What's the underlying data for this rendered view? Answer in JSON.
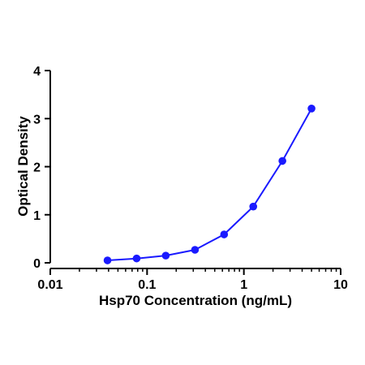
{
  "chart_data": {
    "type": "line",
    "xlabel": "Hsp70 Concentration (ng/mL)",
    "ylabel": "Optical Density",
    "x_scale": "log",
    "xlim": [
      0.01,
      10
    ],
    "ylim": [
      0,
      4
    ],
    "x_ticks": [
      "0.01",
      "0.1",
      "1",
      "10"
    ],
    "y_ticks": [
      "0",
      "1",
      "2",
      "3",
      "4"
    ],
    "grid": false,
    "series_color": "#1a1aff",
    "series": [
      {
        "x": [
          0.039,
          0.078,
          0.156,
          0.3125,
          0.625,
          1.25,
          2.5,
          5
        ],
        "y": [
          0.05,
          0.09,
          0.15,
          0.27,
          0.59,
          1.17,
          2.12,
          3.21
        ]
      }
    ]
  }
}
